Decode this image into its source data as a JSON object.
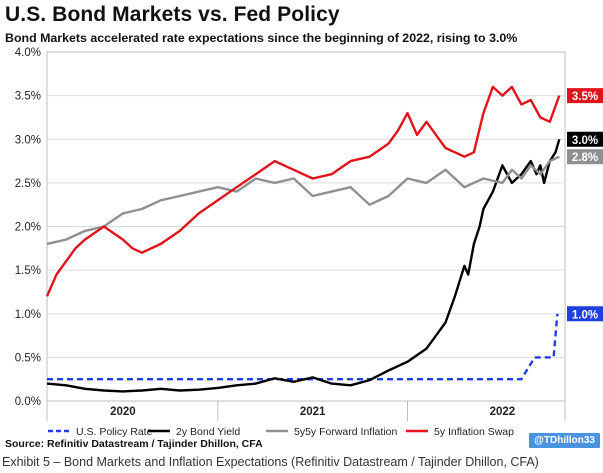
{
  "title": "U.S. Bond Markets vs. Fed Policy",
  "subtitle": "Bond Markets accelerated rate expectations since the beginning of 2022, rising to 3.0%",
  "source": "Source: Refinitiv Datastream / Tajinder Dhillon, CFA",
  "handle": "@TDhillon33",
  "caption": "Exhibit 5 – Bond Markets and Inflation Expectations (Refinitiv Datastream / Tajinder Dhillon, CFA)",
  "chart_data": {
    "type": "line",
    "title": "U.S. Bond Markets vs. Fed Policy",
    "subtitle": "Bond Markets accelerated rate expectations since the beginning of 2022, rising to 3.0%",
    "x_unit": "fraction of year",
    "xlim": [
      2019.6,
      2022.33
    ],
    "ylim": [
      0,
      4
    ],
    "y_ticks": [
      "0.0%",
      "0.5%",
      "1.0%",
      "1.5%",
      "2.0%",
      "2.5%",
      "3.0%",
      "3.5%",
      "4.0%"
    ],
    "x_labels": [
      {
        "label": "2020",
        "x": 2020.0
      },
      {
        "label": "2021",
        "x": 2021.0
      },
      {
        "label": "2022",
        "x": 2022.0
      }
    ],
    "year_dividers": [
      2020.5,
      2021.5
    ],
    "grid": "horizontal",
    "legend_position": "bottom",
    "series": [
      {
        "name": "U.S. Policy Rate",
        "color": "#1f3ee0",
        "dash": true,
        "end_label": "1.0%",
        "x": [
          2019.6,
          2021.75,
          2021.75,
          2021.75,
          2021.8,
          2021.88,
          2021.97,
          2022.1,
          2022.17,
          2022.27,
          2022.29
        ],
        "y": [
          0.25,
          0.25,
          0.25,
          0.25,
          0.25,
          0.25,
          0.25,
          0.25,
          0.5,
          0.5,
          1.0
        ]
      },
      {
        "name": "2y Bond Yield",
        "color": "#000000",
        "dash": false,
        "end_label": "3.0%",
        "x": [
          2019.6,
          2019.7,
          2019.8,
          2019.9,
          2020.0,
          2020.1,
          2020.2,
          2020.3,
          2020.4,
          2020.5,
          2020.6,
          2020.7,
          2020.8,
          2020.9,
          2021.0,
          2021.1,
          2021.2,
          2021.3,
          2021.4,
          2021.5,
          2021.6,
          2021.65,
          2021.7,
          2021.75,
          2021.8,
          2021.82,
          2021.85,
          2021.88,
          2021.9,
          2021.95,
          2022.0,
          2022.05,
          2022.1,
          2022.15,
          2022.18,
          2022.2,
          2022.22,
          2022.25,
          2022.28,
          2022.3
        ],
        "y": [
          0.2,
          0.18,
          0.14,
          0.12,
          0.11,
          0.12,
          0.14,
          0.12,
          0.13,
          0.15,
          0.18,
          0.2,
          0.26,
          0.22,
          0.27,
          0.2,
          0.18,
          0.24,
          0.35,
          0.45,
          0.6,
          0.75,
          0.9,
          1.2,
          1.55,
          1.45,
          1.8,
          2.0,
          2.2,
          2.4,
          2.7,
          2.5,
          2.6,
          2.75,
          2.6,
          2.7,
          2.5,
          2.75,
          2.85,
          3.0
        ]
      },
      {
        "name": "5y5y Forward Inflation",
        "color": "#909090",
        "dash": false,
        "end_label": "2.8%",
        "x": [
          2019.6,
          2019.7,
          2019.8,
          2019.9,
          2020.0,
          2020.1,
          2020.2,
          2020.3,
          2020.4,
          2020.5,
          2020.6,
          2020.7,
          2020.8,
          2020.9,
          2021.0,
          2021.1,
          2021.2,
          2021.3,
          2021.4,
          2021.5,
          2021.6,
          2021.7,
          2021.8,
          2021.9,
          2022.0,
          2022.05,
          2022.1,
          2022.15,
          2022.2,
          2022.25,
          2022.3
        ],
        "y": [
          1.8,
          1.85,
          1.95,
          2.0,
          2.15,
          2.2,
          2.3,
          2.35,
          2.4,
          2.45,
          2.4,
          2.55,
          2.5,
          2.55,
          2.35,
          2.4,
          2.45,
          2.25,
          2.35,
          2.55,
          2.5,
          2.65,
          2.45,
          2.55,
          2.5,
          2.65,
          2.55,
          2.7,
          2.6,
          2.75,
          2.8
        ]
      },
      {
        "name": "5y Inflation Swap",
        "color": "#e0141a",
        "dash": false,
        "end_label": "3.5%",
        "x": [
          2019.6,
          2019.65,
          2019.7,
          2019.75,
          2019.8,
          2019.9,
          2020.0,
          2020.05,
          2020.1,
          2020.2,
          2020.3,
          2020.4,
          2020.5,
          2020.6,
          2020.7,
          2020.8,
          2020.9,
          2021.0,
          2021.1,
          2021.2,
          2021.3,
          2021.4,
          2021.45,
          2021.5,
          2021.55,
          2021.6,
          2021.65,
          2021.7,
          2021.8,
          2021.85,
          2021.9,
          2021.95,
          2022.0,
          2022.05,
          2022.1,
          2022.15,
          2022.2,
          2022.25,
          2022.3
        ],
        "y": [
          1.2,
          1.45,
          1.6,
          1.75,
          1.85,
          2.0,
          1.85,
          1.75,
          1.7,
          1.8,
          1.95,
          2.15,
          2.3,
          2.45,
          2.6,
          2.75,
          2.65,
          2.55,
          2.6,
          2.75,
          2.8,
          2.95,
          3.1,
          3.3,
          3.05,
          3.2,
          3.05,
          2.9,
          2.8,
          2.85,
          3.3,
          3.6,
          3.5,
          3.6,
          3.4,
          3.45,
          3.25,
          3.2,
          3.5
        ]
      }
    ]
  }
}
